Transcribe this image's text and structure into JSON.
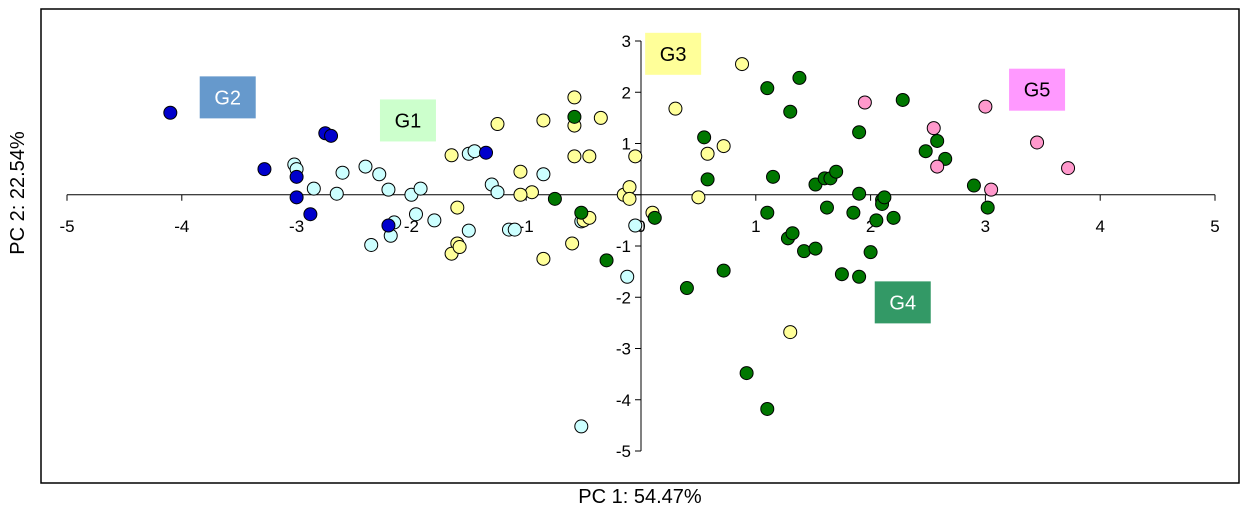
{
  "chart_data": {
    "type": "scatter",
    "xlabel": "PC 1: 54.47%",
    "ylabel": "PC 2: 22.54%",
    "xlim": [
      -5,
      5
    ],
    "ylim": [
      -5,
      3
    ],
    "x_ticks": [
      -5,
      -4,
      -3,
      -2,
      -1,
      0,
      1,
      2,
      3,
      4,
      5
    ],
    "y_ticks": [
      -5,
      -4,
      -3,
      -2,
      -1,
      0,
      1,
      2,
      3
    ],
    "x_tick_labels": [
      "-5",
      "-4",
      "-3",
      "-2",
      "-1",
      "0",
      "1",
      "2",
      "3",
      "4",
      "5"
    ],
    "y_tick_labels": [
      "-5",
      "-4",
      "-3",
      "-2",
      "-1",
      "0",
      "1",
      "2",
      "3"
    ],
    "grid": false,
    "series": [
      {
        "name": "G1",
        "label": "G1",
        "color": "#ccffff",
        "label_bg": "#ccffcc",
        "label_color": "#000000",
        "label_pos": [
          -2.03,
          1.45
        ],
        "points": [
          [
            -3.02,
            0.59
          ],
          [
            -3.0,
            0.5
          ],
          [
            -2.85,
            0.12
          ],
          [
            -2.65,
            0.02
          ],
          [
            -2.6,
            0.43
          ],
          [
            -2.4,
            0.55
          ],
          [
            -2.28,
            0.4
          ],
          [
            -2.2,
            0.1
          ],
          [
            -2.15,
            -0.54
          ],
          [
            -2.18,
            -0.8
          ],
          [
            -2.35,
            -0.98
          ],
          [
            -2.0,
            0.0
          ],
          [
            -1.96,
            -0.38
          ],
          [
            -1.92,
            0.12
          ],
          [
            -1.8,
            -0.5
          ],
          [
            -1.5,
            0.8
          ],
          [
            -1.5,
            -0.7
          ],
          [
            -1.45,
            0.85
          ],
          [
            -1.3,
            0.2
          ],
          [
            -1.25,
            0.05
          ],
          [
            -1.15,
            -0.68
          ],
          [
            -1.1,
            -0.68
          ],
          [
            -0.85,
            0.4
          ],
          [
            -0.52,
            -0.52
          ],
          [
            -0.52,
            -4.52
          ],
          [
            -0.12,
            -1.6
          ],
          [
            -0.05,
            -0.6
          ]
        ]
      },
      {
        "name": "G2",
        "label": "G2",
        "color": "#0000cc",
        "label_bg": "#6699cc",
        "label_color": "#ffffff",
        "label_pos": [
          -3.6,
          1.9
        ],
        "points": [
          [
            -4.1,
            1.6
          ],
          [
            -3.28,
            0.5
          ],
          [
            -2.75,
            1.2
          ],
          [
            -2.7,
            1.15
          ],
          [
            -3.0,
            0.35
          ],
          [
            -3.0,
            -0.05
          ],
          [
            -2.88,
            -0.38
          ],
          [
            -2.2,
            -0.6
          ],
          [
            -1.35,
            0.82
          ]
        ]
      },
      {
        "name": "G3",
        "label": "G3",
        "color": "#ffff99",
        "label_bg": "#ffff99",
        "label_color": "#000000",
        "label_pos": [
          0.28,
          2.75
        ],
        "points": [
          [
            -1.65,
            0.77
          ],
          [
            -1.6,
            -0.25
          ],
          [
            -1.6,
            -0.95
          ],
          [
            -1.65,
            -1.15
          ],
          [
            -1.58,
            -1.02
          ],
          [
            -1.25,
            1.38
          ],
          [
            -0.85,
            1.45
          ],
          [
            -0.85,
            -1.25
          ],
          [
            -1.05,
            0.45
          ],
          [
            -0.95,
            0.05
          ],
          [
            -1.05,
            0.0
          ],
          [
            -0.58,
            1.9
          ],
          [
            -0.58,
            1.35
          ],
          [
            -0.58,
            0.75
          ],
          [
            -0.45,
            0.75
          ],
          [
            -0.6,
            -0.95
          ],
          [
            -0.5,
            -0.5
          ],
          [
            -0.45,
            -0.45
          ],
          [
            -0.35,
            1.5
          ],
          [
            -0.15,
            0.0
          ],
          [
            -0.1,
            0.15
          ],
          [
            -0.05,
            0.75
          ],
          [
            -0.1,
            -0.08
          ],
          [
            0.1,
            -0.35
          ],
          [
            0.3,
            1.68
          ],
          [
            0.5,
            -0.05
          ],
          [
            0.58,
            0.8
          ],
          [
            0.72,
            0.95
          ],
          [
            0.88,
            2.55
          ],
          [
            1.3,
            -2.68
          ]
        ]
      },
      {
        "name": "G4",
        "label": "G4",
        "color": "#007700",
        "label_bg": "#339966",
        "label_color": "#ffffff",
        "label_pos": [
          2.28,
          -2.1
        ],
        "points": [
          [
            -0.58,
            1.52
          ],
          [
            -0.52,
            -0.35
          ],
          [
            -0.75,
            -0.08
          ],
          [
            -0.3,
            -1.28
          ],
          [
            0.12,
            -0.45
          ],
          [
            0.55,
            1.12
          ],
          [
            0.58,
            0.3
          ],
          [
            0.4,
            -1.82
          ],
          [
            0.72,
            -1.48
          ],
          [
            0.92,
            -3.48
          ],
          [
            1.1,
            -4.18
          ],
          [
            1.1,
            2.08
          ],
          [
            1.1,
            -0.35
          ],
          [
            1.15,
            0.35
          ],
          [
            1.3,
            1.62
          ],
          [
            1.28,
            -0.85
          ],
          [
            1.32,
            -0.75
          ],
          [
            1.38,
            2.28
          ],
          [
            1.42,
            -1.1
          ],
          [
            1.52,
            -1.05
          ],
          [
            1.52,
            0.2
          ],
          [
            1.6,
            0.32
          ],
          [
            1.62,
            -0.25
          ],
          [
            1.65,
            0.32
          ],
          [
            1.7,
            0.45
          ],
          [
            1.75,
            -1.55
          ],
          [
            1.85,
            -0.35
          ],
          [
            1.9,
            0.02
          ],
          [
            1.9,
            1.22
          ],
          [
            1.9,
            -1.6
          ],
          [
            2.0,
            -1.12
          ],
          [
            2.05,
            -0.5
          ],
          [
            2.1,
            -0.1
          ],
          [
            2.1,
            -0.18
          ],
          [
            2.12,
            -0.05
          ],
          [
            2.2,
            -0.45
          ],
          [
            2.28,
            1.85
          ],
          [
            2.48,
            0.85
          ],
          [
            2.58,
            1.05
          ],
          [
            2.65,
            0.7
          ],
          [
            2.9,
            0.18
          ],
          [
            3.02,
            -0.25
          ]
        ]
      },
      {
        "name": "G5",
        "label": "G5",
        "color": "#ff99cc",
        "label_bg": "#ff99ff",
        "label_color": "#000000",
        "label_pos": [
          3.45,
          2.05
        ],
        "points": [
          [
            1.95,
            1.8
          ],
          [
            2.55,
            1.3
          ],
          [
            2.58,
            0.55
          ],
          [
            3.0,
            1.72
          ],
          [
            3.05,
            0.1
          ],
          [
            3.45,
            1.02
          ],
          [
            3.72,
            0.52
          ]
        ]
      }
    ]
  }
}
